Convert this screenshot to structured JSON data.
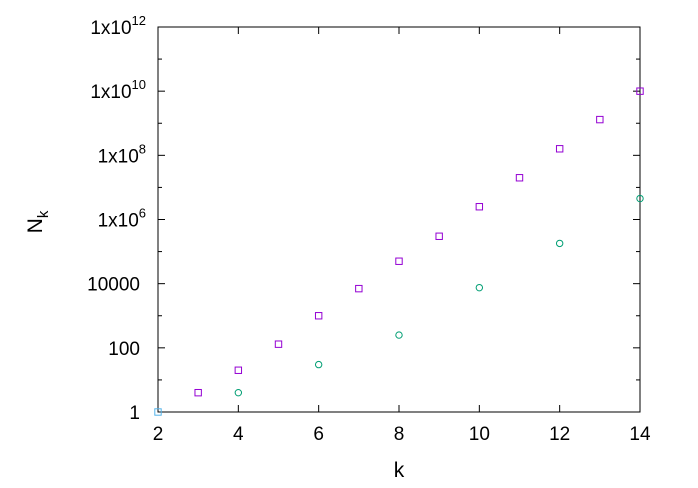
{
  "chart_data": {
    "type": "scatter",
    "xlabel": "k",
    "ylabel": {
      "base": "N",
      "sub": "k"
    },
    "xlim": [
      2,
      14
    ],
    "ylim": [
      1,
      1000000000000.0
    ],
    "yscale": "log10",
    "grid": false,
    "legend": "none",
    "x_ticks": [
      2,
      4,
      6,
      8,
      10,
      12,
      14
    ],
    "y_ticks": [
      {
        "value": 1,
        "label": "1"
      },
      {
        "value": 100,
        "label": "100"
      },
      {
        "value": 10000,
        "label": "10000"
      },
      {
        "value": 1000000.0,
        "label": "1x10",
        "exp": "6"
      },
      {
        "value": 100000000.0,
        "label": "1x10",
        "exp": "8"
      },
      {
        "value": 10000000000.0,
        "label": "1x10",
        "exp": "10"
      },
      {
        "value": 1000000000000.0,
        "label": "1x10",
        "exp": "12"
      }
    ],
    "series": [
      {
        "marker": "square",
        "color": "#9400d3",
        "points": [
          [
            3,
            4
          ],
          [
            4,
            20
          ],
          [
            5,
            130
          ],
          [
            6,
            1000
          ],
          [
            7,
            7000
          ],
          [
            8,
            50000
          ],
          [
            9,
            300000
          ],
          [
            10,
            2500000
          ],
          [
            11,
            20000000
          ],
          [
            12,
            160000000
          ],
          [
            13,
            1300000000
          ],
          [
            14,
            10000000000
          ]
        ]
      },
      {
        "marker": "circle",
        "color": "#009e73",
        "points": [
          [
            4,
            4
          ],
          [
            6,
            30
          ],
          [
            8,
            250
          ],
          [
            10,
            7500
          ],
          [
            12,
            180000
          ],
          [
            14,
            4500000
          ]
        ]
      },
      {
        "marker": "square",
        "color": "#56b4e9",
        "points": [
          [
            2,
            1
          ]
        ]
      }
    ]
  }
}
